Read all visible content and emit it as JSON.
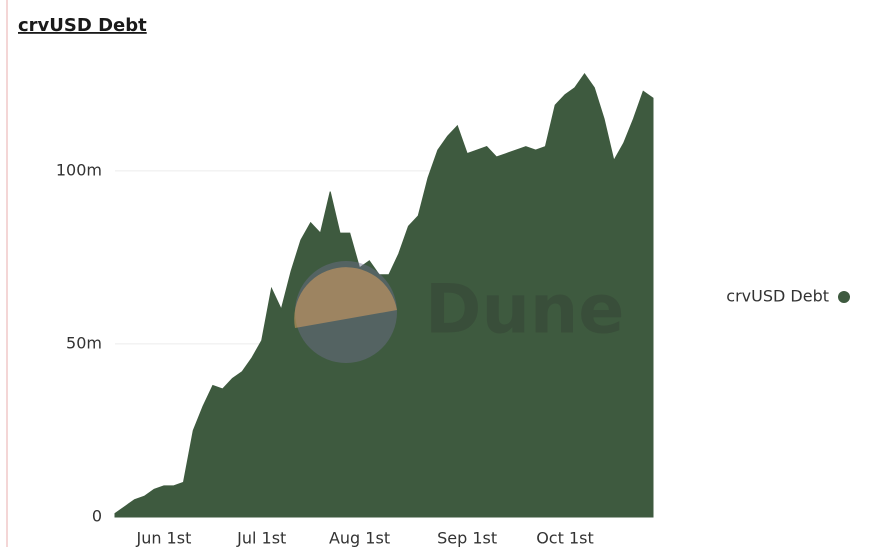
{
  "chart_data": {
    "type": "area",
    "title": "crvUSD Debt",
    "watermark": "Dune",
    "categories": [
      null,
      null,
      null,
      null,
      null,
      "Jun 1st",
      null,
      null,
      null,
      null,
      null,
      null,
      null,
      null,
      null,
      "Jul 1st",
      null,
      null,
      null,
      null,
      null,
      null,
      null,
      null,
      null,
      "Aug 1st",
      null,
      null,
      null,
      null,
      null,
      null,
      null,
      null,
      null,
      null,
      "Sep 1st",
      null,
      null,
      null,
      null,
      null,
      null,
      null,
      null,
      null,
      "Oct 1st",
      null,
      null,
      null,
      null,
      null,
      null,
      null,
      null,
      null
    ],
    "series": [
      {
        "name": "crvUSD Debt",
        "color": "#3e5a3f",
        "values": [
          1,
          3,
          5,
          6,
          8,
          9,
          9,
          10,
          25,
          32,
          38,
          37,
          40,
          42,
          46,
          51,
          66,
          60,
          71,
          80,
          85,
          82,
          94,
          82,
          82,
          72,
          74,
          70,
          70,
          76,
          84,
          87,
          98,
          106,
          110,
          113,
          105,
          106,
          107,
          104,
          105,
          106,
          107,
          106,
          107,
          119,
          122,
          124,
          128,
          124,
          115,
          103,
          108,
          115,
          123,
          121
        ]
      }
    ],
    "ylim": [
      0,
      130
    ],
    "yticks": [
      0,
      {
        "value": 50,
        "label": "50m"
      },
      {
        "value": 100,
        "label": "100m"
      }
    ],
    "grid": true,
    "legend": "right"
  }
}
